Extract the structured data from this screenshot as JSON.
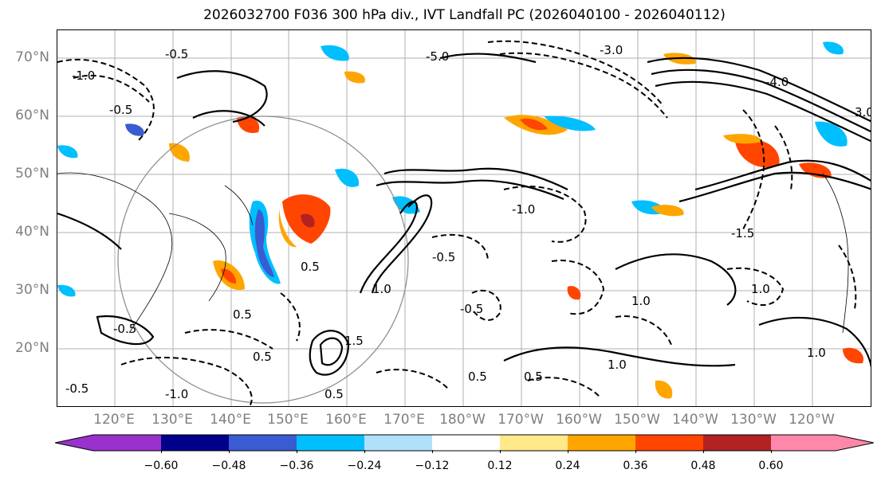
{
  "title": "2026032700 F036 300 hPa div., IVT Landfall PC (2026040100 - 2026040112)",
  "lat_labels": [
    "70°N",
    "60°N",
    "50°N",
    "40°N",
    "30°N",
    "20°N"
  ],
  "lon_labels": [
    "120°E",
    "130°E",
    "140°E",
    "150°E",
    "160°E",
    "170°E",
    "180°W",
    "170°W",
    "160°W",
    "150°W",
    "140°W",
    "130°W",
    "120°W"
  ],
  "contour_labels": [
    "-5.0",
    "-1.0",
    "-0.5",
    "-3.0",
    "-4.0",
    "-1.5",
    "-1.0",
    "-0.5",
    "0.5",
    "1.0",
    "0.5",
    "-0.5",
    "1.0",
    "-1.0",
    "1.5",
    "-0.5",
    "0.5",
    "1.0",
    "1.0",
    "0.5",
    "3.0",
    "0.5",
    "-0.5",
    "1.0",
    "0.5",
    "-0.5"
  ],
  "colorbar": {
    "ticks": [
      "−0.60",
      "−0.48",
      "−0.36",
      "−0.24",
      "−0.12",
      "0.12",
      "0.24",
      "0.36",
      "0.48",
      "0.60"
    ],
    "colors": [
      "#9932cc",
      "#00008b",
      "#3a5bd1",
      "#00bfff",
      "#b0e0fa",
      "#ffffff",
      "#ffe98a",
      "#ffa500",
      "#ff4500",
      "#b22222",
      "#ff88aa"
    ],
    "extend": "both"
  },
  "palette": {
    "neg_strong": "#3a5bd1",
    "neg_mid": "#00bfff",
    "neg_weak": "#b0e0fa",
    "pos_weak": "#ffe98a",
    "pos_mid": "#ffa500",
    "pos_strong": "#ff4500",
    "pos_max": "#b22222"
  }
}
